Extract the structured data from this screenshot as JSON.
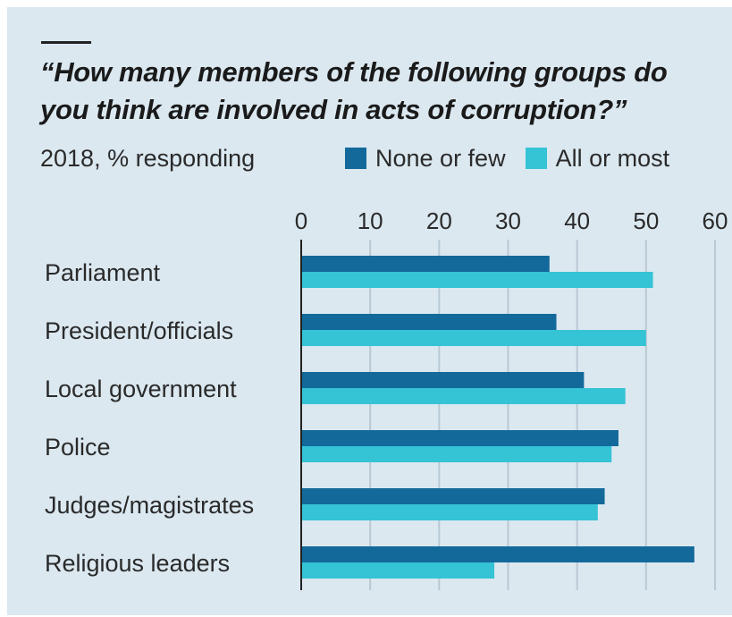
{
  "chart_data": {
    "type": "bar",
    "orientation": "horizontal",
    "title": "“How many members of the following groups do you think are involved in acts of corruption?”",
    "subtitle": "2018, % responding",
    "categories": [
      "Parliament",
      "President/officials",
      "Local government",
      "Police",
      "Judges/magistrates",
      "Religious leaders"
    ],
    "series": [
      {
        "name": "None or few",
        "color": "#13699a",
        "values": [
          36,
          37,
          41,
          46,
          44,
          57
        ]
      },
      {
        "name": "All or most",
        "color": "#35c3d6",
        "values": [
          51,
          50,
          47,
          45,
          43,
          28
        ]
      }
    ],
    "xlim": [
      0,
      60
    ],
    "xticks": [
      "0",
      "10",
      "20",
      "30",
      "40",
      "50",
      "60"
    ],
    "grid": true,
    "legend_position": "top-right"
  }
}
